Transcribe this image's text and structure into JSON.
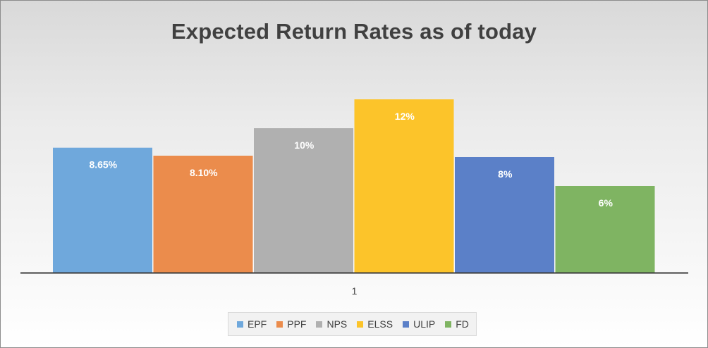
{
  "chart_data": {
    "type": "bar",
    "title": "Expected Return Rates as of today",
    "categories": [
      "1"
    ],
    "ylim": [
      0,
      14
    ],
    "grid": false,
    "legend_position": "bottom",
    "series": [
      {
        "name": "EPF",
        "values": [
          8.65
        ],
        "label": "8.65%",
        "color": "#6fa8dc"
      },
      {
        "name": "PPF",
        "values": [
          8.1
        ],
        "label": "8.10%",
        "color": "#eb8c4c"
      },
      {
        "name": "NPS",
        "values": [
          10
        ],
        "label": "10%",
        "color": "#b0b0b0"
      },
      {
        "name": "ELSS",
        "values": [
          12
        ],
        "label": "12%",
        "color": "#fcc42a"
      },
      {
        "name": "ULIP",
        "values": [
          8
        ],
        "label": "8%",
        "color": "#5b80c8"
      },
      {
        "name": "FD",
        "values": [
          6
        ],
        "label": "6%",
        "color": "#7fb462"
      }
    ]
  }
}
